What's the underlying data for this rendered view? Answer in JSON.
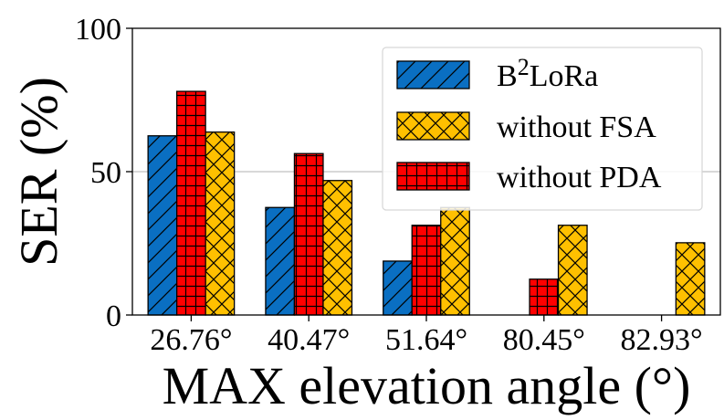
{
  "chart_data": {
    "type": "bar",
    "title": "",
    "xlabel": "MAX elevation angle (°)",
    "ylabel": "SER (%)",
    "ylim": [
      0,
      100
    ],
    "yticks": [
      "0",
      "50",
      "100"
    ],
    "grid": "horizontal at 50",
    "legend_position": "top-right",
    "categories": [
      "26.76°",
      "40.47°",
      "51.64°",
      "80.45°",
      "82.93°"
    ],
    "series": [
      {
        "name": "B",
        "superscript": "2",
        "name_suffix": "LoRa",
        "color": "#0a6fc2",
        "hatch": "diagonal",
        "values": [
          62.5,
          37.5,
          18.8,
          0,
          0
        ]
      },
      {
        "name": "without PDA",
        "color": "#ff0000",
        "hatch": "grid",
        "values": [
          78,
          56.3,
          31.3,
          12.5,
          0
        ]
      },
      {
        "name": "without FSA",
        "color": "#ffc000",
        "hatch": "cross",
        "values": [
          63.8,
          46.9,
          37.5,
          31.3,
          25.2
        ]
      }
    ],
    "legend_order": [
      0,
      2,
      1
    ]
  }
}
